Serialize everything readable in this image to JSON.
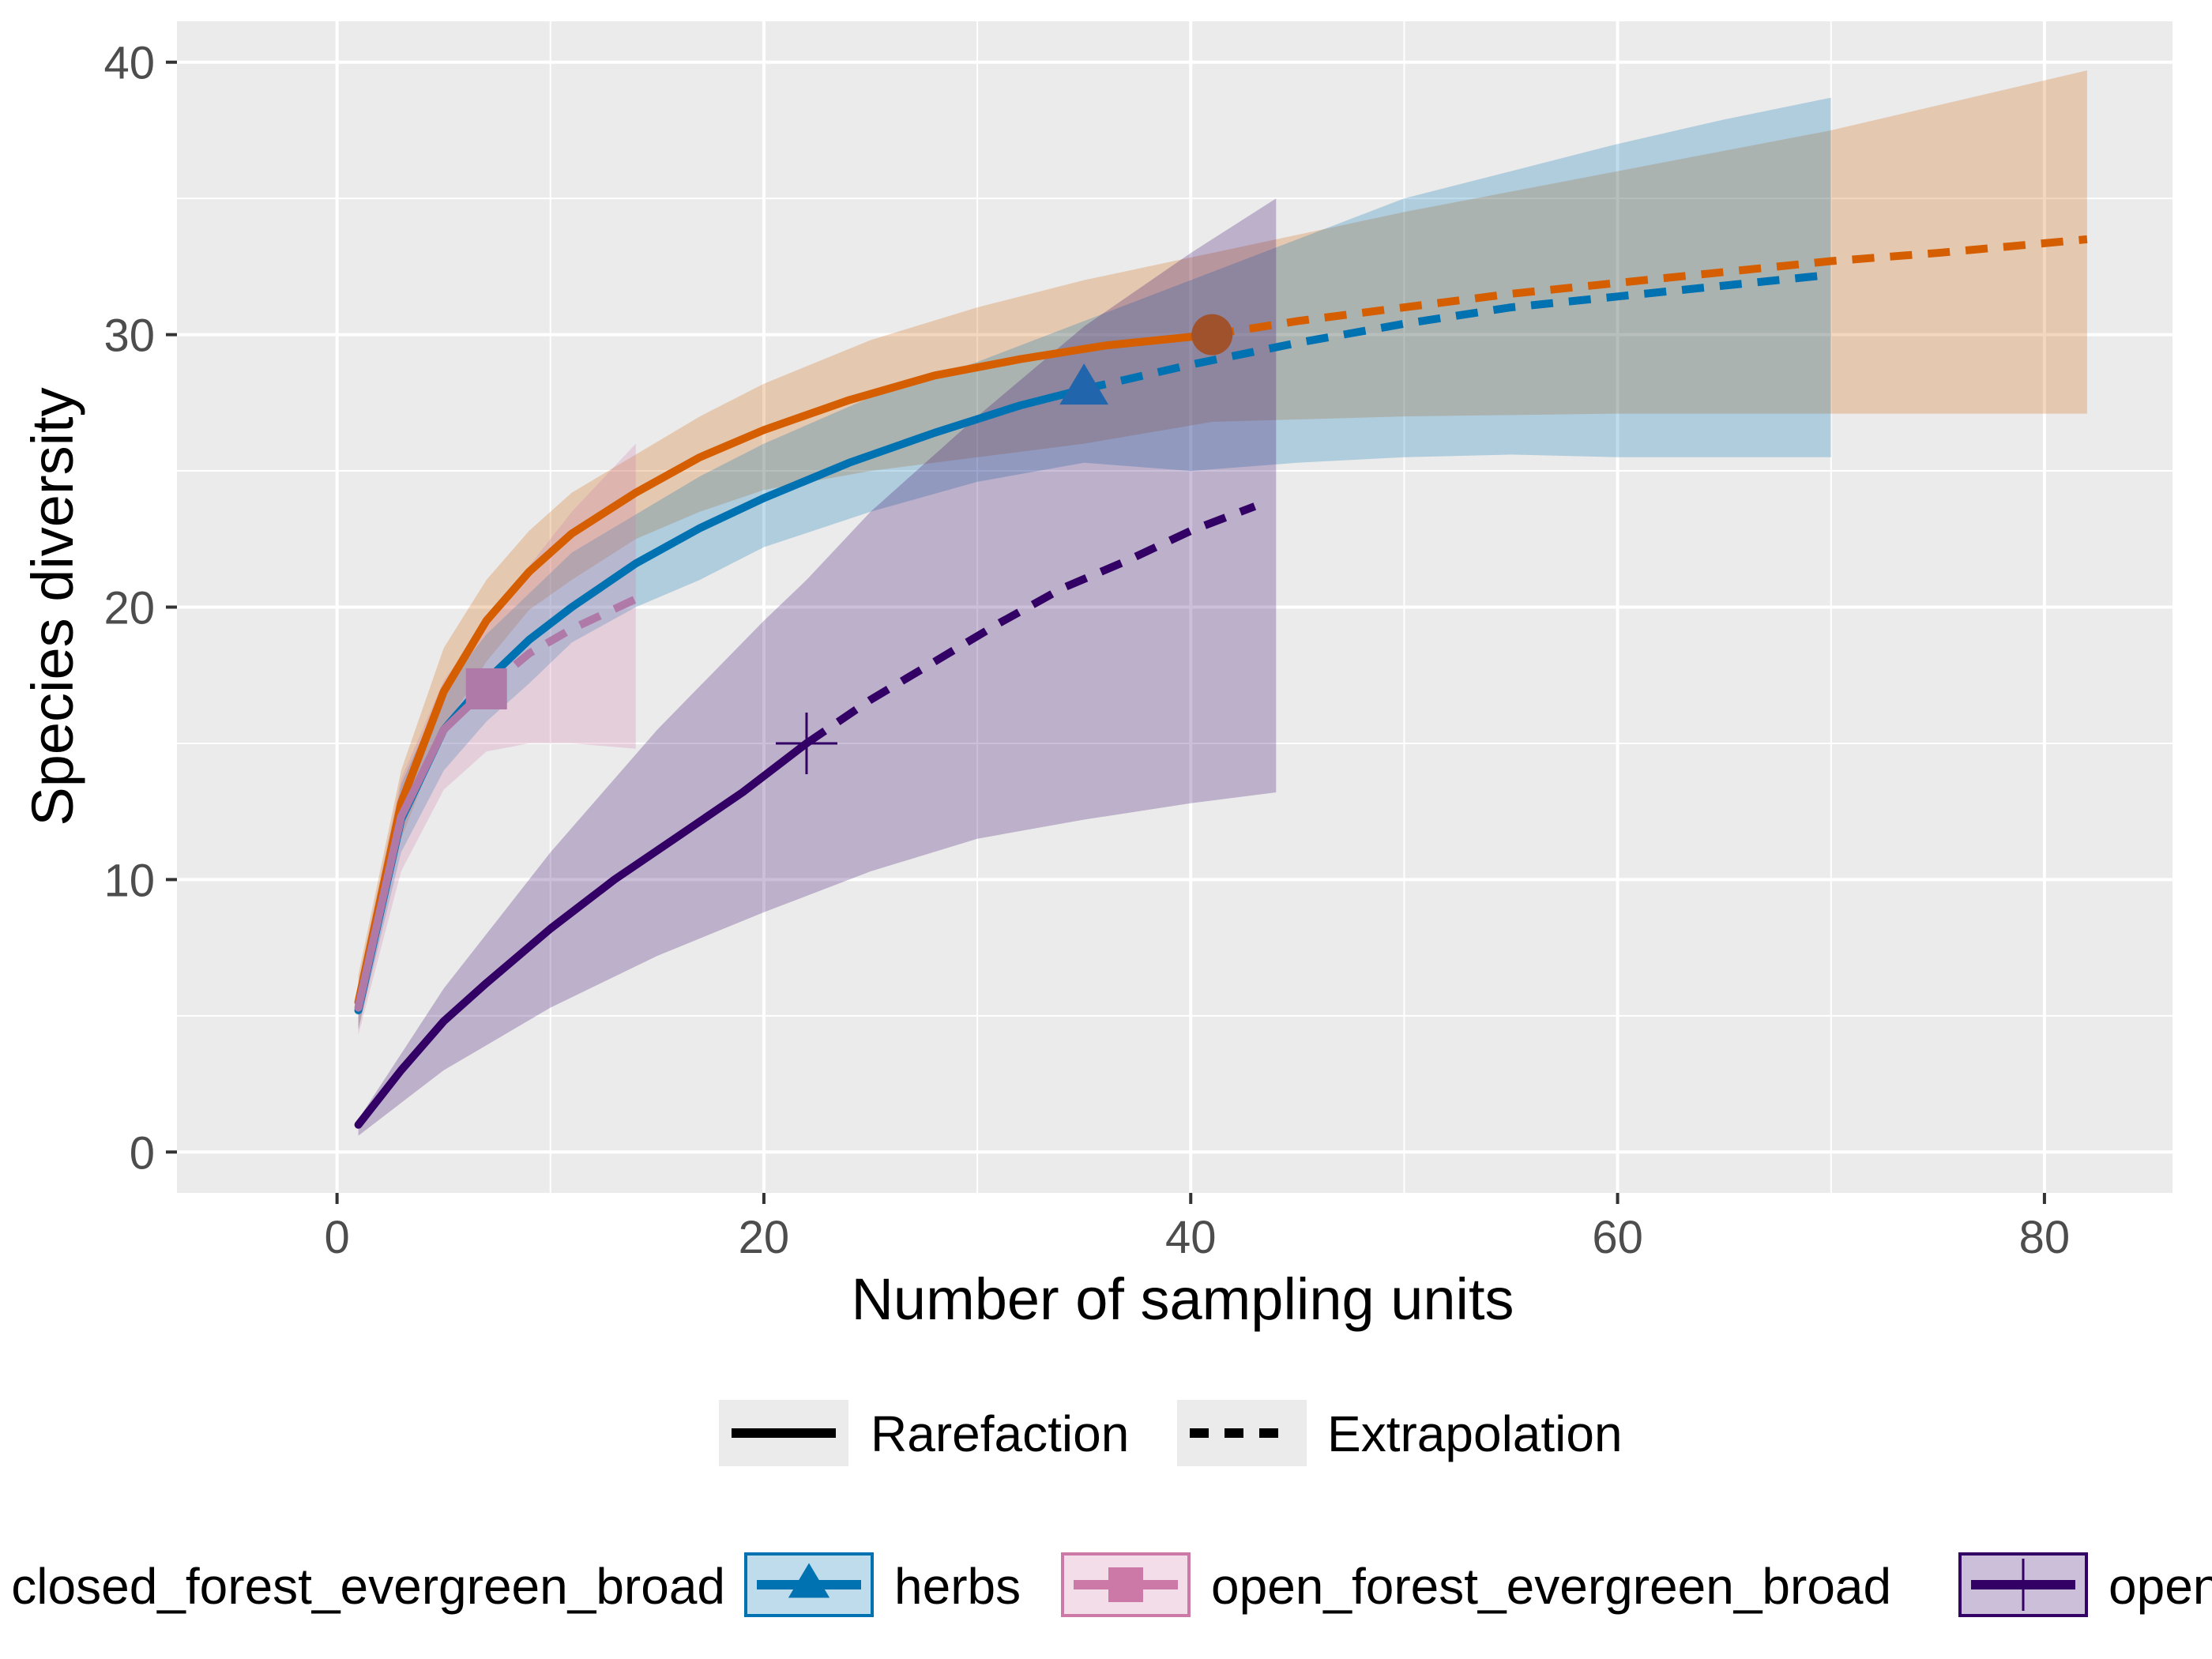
{
  "chart_data": {
    "type": "line",
    "xlabel": "Number of sampling units",
    "ylabel": "Species diversity",
    "xlim": [
      -7.5,
      86
    ],
    "ylim": [
      -1.5,
      41.5
    ],
    "xticks": [
      0,
      20,
      40,
      60,
      80
    ],
    "yticks": [
      0,
      10,
      20,
      30,
      40
    ],
    "grid": true,
    "background": "#EBEBEB",
    "legend_method": {
      "position": "bottom",
      "items": [
        {
          "label": "Rarefaction",
          "style": "solid"
        },
        {
          "label": "Extrapolation",
          "style": "dashed"
        }
      ]
    },
    "legend_assemblage": {
      "position": "bottom",
      "items": [
        {
          "label": "closed_forest_evergreen_broad",
          "color": "#D55E00",
          "shape": "circle"
        },
        {
          "label": "herbs",
          "color": "#0072B2",
          "shape": "triangle"
        },
        {
          "label": "open_forest_evergreen_broad",
          "color": "#CC79A7",
          "shape": "square"
        },
        {
          "label": "open_forest_evergreen_needle",
          "color": "#330066",
          "shape": "cross"
        }
      ]
    },
    "series": [
      {
        "name": "closed_forest_evergreen_broad",
        "color": "#D55E00",
        "line_color": "#D55E00",
        "shape": "circle",
        "reference": {
          "x": 41,
          "y": 30
        },
        "rarefaction": [
          [
            1,
            5.5
          ],
          [
            3,
            12.8
          ],
          [
            5,
            16.9
          ],
          [
            7,
            19.5
          ],
          [
            9,
            21.3
          ],
          [
            11,
            22.7
          ],
          [
            14,
            24.2
          ],
          [
            17,
            25.5
          ],
          [
            20,
            26.5
          ],
          [
            24,
            27.6
          ],
          [
            28,
            28.5
          ],
          [
            32,
            29.1
          ],
          [
            36,
            29.6
          ],
          [
            41,
            30
          ]
        ],
        "extrapolation": [
          [
            41,
            30
          ],
          [
            45,
            30.5
          ],
          [
            50,
            31
          ],
          [
            55,
            31.5
          ],
          [
            60,
            31.9
          ],
          [
            65,
            32.3
          ],
          [
            70,
            32.7
          ],
          [
            75,
            33
          ],
          [
            82,
            33.5
          ]
        ],
        "ci_upper": [
          [
            1,
            6.5
          ],
          [
            3,
            14
          ],
          [
            5,
            18.5
          ],
          [
            7,
            21
          ],
          [
            9,
            22.8
          ],
          [
            11,
            24.2
          ],
          [
            14,
            25.6
          ],
          [
            17,
            27
          ],
          [
            20,
            28.2
          ],
          [
            25,
            29.8
          ],
          [
            30,
            31
          ],
          [
            35,
            32
          ],
          [
            41,
            33
          ],
          [
            50,
            34.5
          ],
          [
            60,
            36
          ],
          [
            70,
            37.5
          ],
          [
            82,
            39.7
          ]
        ],
        "ci_lower": [
          [
            82,
            27.1
          ],
          [
            70,
            27.1
          ],
          [
            60,
            27.1
          ],
          [
            50,
            27
          ],
          [
            41,
            26.8
          ],
          [
            35,
            26
          ],
          [
            30,
            25.5
          ],
          [
            25,
            25
          ],
          [
            20,
            24.3
          ],
          [
            17,
            23.5
          ],
          [
            14,
            22.5
          ],
          [
            11,
            21
          ],
          [
            9,
            19.9
          ],
          [
            7,
            18
          ],
          [
            5,
            15.5
          ],
          [
            3,
            11.5
          ],
          [
            1,
            4.5
          ]
        ]
      },
      {
        "name": "herbs",
        "color": "#0072B2",
        "line_color": "#0072B2",
        "shape": "triangle",
        "reference": {
          "x": 35,
          "y": 28
        },
        "rarefaction": [
          [
            1,
            5.2
          ],
          [
            3,
            12.2
          ],
          [
            5,
            15.5
          ],
          [
            7,
            17.3
          ],
          [
            9,
            18.8
          ],
          [
            11,
            20
          ],
          [
            14,
            21.6
          ],
          [
            17,
            22.9
          ],
          [
            20,
            24
          ],
          [
            24,
            25.3
          ],
          [
            28,
            26.4
          ],
          [
            32,
            27.4
          ],
          [
            35,
            28
          ]
        ],
        "extrapolation": [
          [
            35,
            28
          ],
          [
            40,
            28.9
          ],
          [
            45,
            29.7
          ],
          [
            50,
            30.4
          ],
          [
            55,
            31
          ],
          [
            60,
            31.4
          ],
          [
            65,
            31.8
          ],
          [
            70,
            32.2
          ]
        ],
        "ci_upper": [
          [
            1,
            5.8
          ],
          [
            3,
            13.5
          ],
          [
            5,
            17
          ],
          [
            7,
            19
          ],
          [
            9,
            20.5
          ],
          [
            11,
            22
          ],
          [
            14,
            23.4
          ],
          [
            17,
            24.8
          ],
          [
            20,
            26
          ],
          [
            25,
            27.7
          ],
          [
            30,
            29
          ],
          [
            35,
            30.5
          ],
          [
            40,
            32
          ],
          [
            45,
            33.5
          ],
          [
            50,
            35
          ],
          [
            55,
            36
          ],
          [
            60,
            37
          ],
          [
            65,
            37.9
          ],
          [
            70,
            38.7
          ]
        ],
        "ci_lower": [
          [
            70,
            25.5
          ],
          [
            65,
            25.5
          ],
          [
            60,
            25.5
          ],
          [
            55,
            25.6
          ],
          [
            50,
            25.5
          ],
          [
            45,
            25.3
          ],
          [
            40,
            25
          ],
          [
            35,
            25.3
          ],
          [
            30,
            24.6
          ],
          [
            25,
            23.5
          ],
          [
            20,
            22.2
          ],
          [
            17,
            21
          ],
          [
            14,
            20
          ],
          [
            11,
            18.7
          ],
          [
            9,
            17.2
          ],
          [
            7,
            15.8
          ],
          [
            5,
            14
          ],
          [
            3,
            11
          ],
          [
            1,
            4.5
          ]
        ]
      },
      {
        "name": "open_forest_evergreen_broad",
        "color": "#CC79A7",
        "line_color": "#B07AA8",
        "shape": "square",
        "reference": {
          "x": 7,
          "y": 17
        },
        "rarefaction": [
          [
            1,
            5.3
          ],
          [
            3,
            12.3
          ],
          [
            5,
            15.5
          ],
          [
            7,
            17
          ]
        ],
        "extrapolation": [
          [
            7,
            17
          ],
          [
            9,
            18.3
          ],
          [
            11,
            19.2
          ],
          [
            14,
            20.3
          ]
        ],
        "ci_upper": [
          [
            1,
            6.2
          ],
          [
            3,
            13.7
          ],
          [
            5,
            17.3
          ],
          [
            7,
            19.5
          ],
          [
            9,
            21.5
          ],
          [
            11,
            23.5
          ],
          [
            14,
            26
          ]
        ],
        "ci_lower": [
          [
            14,
            14.8
          ],
          [
            11,
            15
          ],
          [
            9,
            15
          ],
          [
            7,
            14.7
          ],
          [
            5,
            13.3
          ],
          [
            3,
            10.3
          ],
          [
            1,
            4.3
          ]
        ]
      },
      {
        "name": "open_forest_evergreen_needle",
        "color": "#330066",
        "line_color": "#330066",
        "shape": "cross",
        "reference": {
          "x": 22,
          "y": 15
        },
        "rarefaction": [
          [
            1,
            1
          ],
          [
            3,
            3
          ],
          [
            5,
            4.8
          ],
          [
            7,
            6.2
          ],
          [
            10,
            8.2
          ],
          [
            13,
            10
          ],
          [
            16,
            11.6
          ],
          [
            19,
            13.2
          ],
          [
            22,
            15
          ]
        ],
        "extrapolation": [
          [
            22,
            15
          ],
          [
            25,
            16.6
          ],
          [
            28,
            18
          ],
          [
            31,
            19.4
          ],
          [
            34,
            20.7
          ],
          [
            37,
            21.7
          ],
          [
            40,
            22.8
          ],
          [
            43,
            23.7
          ]
        ],
        "ci_upper": [
          [
            1,
            1.2
          ],
          [
            5,
            6
          ],
          [
            10,
            11
          ],
          [
            15,
            15.5
          ],
          [
            20,
            19.5
          ],
          [
            22,
            21
          ],
          [
            25,
            23.5
          ],
          [
            30,
            27
          ],
          [
            35,
            30.3
          ],
          [
            40,
            33
          ],
          [
            44,
            35
          ]
        ],
        "ci_lower": [
          [
            44,
            13.2
          ],
          [
            40,
            12.8
          ],
          [
            35,
            12.2
          ],
          [
            30,
            11.5
          ],
          [
            25,
            10.3
          ],
          [
            20,
            8.8
          ],
          [
            15,
            7.2
          ],
          [
            10,
            5.3
          ],
          [
            5,
            3
          ],
          [
            1,
            0.6
          ]
        ]
      }
    ]
  }
}
